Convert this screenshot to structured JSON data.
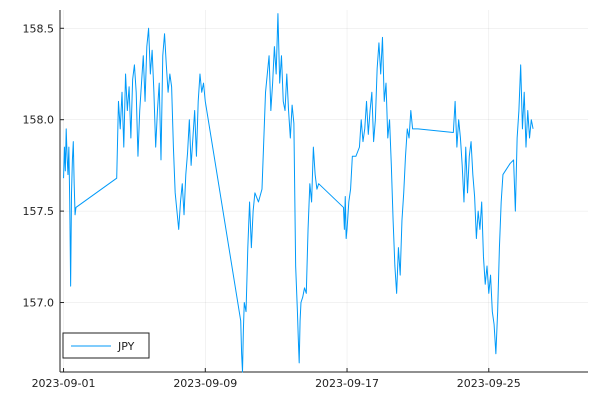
{
  "chart_data": {
    "type": "line",
    "title": "",
    "xlabel": "",
    "ylabel": "",
    "grid": true,
    "legend_position": "bottom-left",
    "x_ticks": [
      {
        "x": 0,
        "label": "2023-09-01"
      },
      {
        "x": 8,
        "label": "2023-09-09"
      },
      {
        "x": 16,
        "label": "2023-09-17"
      },
      {
        "x": 24,
        "label": "2023-09-25"
      }
    ],
    "x_tick_unit": "days since 2023-09-01",
    "xlim": [
      -0.2,
      29.6
    ],
    "y_ticks": [
      157.0,
      157.5,
      158.0,
      158.5
    ],
    "ylim": [
      156.62,
      158.6
    ],
    "series": [
      {
        "name": "JPY",
        "color": "#009af9",
        "points": [
          [
            0.0,
            157.68
          ],
          [
            0.05,
            157.85
          ],
          [
            0.1,
            157.72
          ],
          [
            0.15,
            157.95
          ],
          [
            0.2,
            157.8
          ],
          [
            0.25,
            157.7
          ],
          [
            0.3,
            157.85
          ],
          [
            0.35,
            157.55
          ],
          [
            0.4,
            157.09
          ],
          [
            0.45,
            157.6
          ],
          [
            0.5,
            157.78
          ],
          [
            0.55,
            157.88
          ],
          [
            0.6,
            157.65
          ],
          [
            0.65,
            157.48
          ],
          [
            0.7,
            157.52
          ],
          [
            3.0,
            157.68
          ],
          [
            3.1,
            158.1
          ],
          [
            3.2,
            157.95
          ],
          [
            3.3,
            158.15
          ],
          [
            3.4,
            157.85
          ],
          [
            3.5,
            158.25
          ],
          [
            3.6,
            158.05
          ],
          [
            3.7,
            158.18
          ],
          [
            3.8,
            157.9
          ],
          [
            3.9,
            158.22
          ],
          [
            4.0,
            158.3
          ],
          [
            4.1,
            158.15
          ],
          [
            4.2,
            157.8
          ],
          [
            4.3,
            158.05
          ],
          [
            4.4,
            158.2
          ],
          [
            4.5,
            158.35
          ],
          [
            4.6,
            158.1
          ],
          [
            4.7,
            158.4
          ],
          [
            4.8,
            158.5
          ],
          [
            4.9,
            158.25
          ],
          [
            5.0,
            158.38
          ],
          [
            5.1,
            158.15
          ],
          [
            5.2,
            157.85
          ],
          [
            5.3,
            158.05
          ],
          [
            5.4,
            158.2
          ],
          [
            5.5,
            157.78
          ],
          [
            5.6,
            158.35
          ],
          [
            5.7,
            158.47
          ],
          [
            5.8,
            158.3
          ],
          [
            5.9,
            158.15
          ],
          [
            6.0,
            158.25
          ],
          [
            6.1,
            158.18
          ],
          [
            6.2,
            157.85
          ],
          [
            6.3,
            157.6
          ],
          [
            6.4,
            157.5
          ],
          [
            6.5,
            157.4
          ],
          [
            6.6,
            157.55
          ],
          [
            6.7,
            157.65
          ],
          [
            6.8,
            157.48
          ],
          [
            6.9,
            157.7
          ],
          [
            7.0,
            157.82
          ],
          [
            7.1,
            158.0
          ],
          [
            7.2,
            157.75
          ],
          [
            7.3,
            157.9
          ],
          [
            7.4,
            158.05
          ],
          [
            7.5,
            157.8
          ],
          [
            7.6,
            158.1
          ],
          [
            7.7,
            158.25
          ],
          [
            7.8,
            158.15
          ],
          [
            7.9,
            158.2
          ],
          [
            8.0,
            158.1
          ],
          [
            10.0,
            156.9
          ],
          [
            10.05,
            156.72
          ],
          [
            10.1,
            156.62
          ],
          [
            10.15,
            156.85
          ],
          [
            10.2,
            157.0
          ],
          [
            10.3,
            156.95
          ],
          [
            10.4,
            157.3
          ],
          [
            10.5,
            157.55
          ],
          [
            10.6,
            157.3
          ],
          [
            10.7,
            157.5
          ],
          [
            10.8,
            157.6
          ],
          [
            11.0,
            157.55
          ],
          [
            11.2,
            157.62
          ],
          [
            11.4,
            158.15
          ],
          [
            11.6,
            158.35
          ],
          [
            11.7,
            158.05
          ],
          [
            11.8,
            158.2
          ],
          [
            11.9,
            158.4
          ],
          [
            12.0,
            158.25
          ],
          [
            12.1,
            158.58
          ],
          [
            12.2,
            158.2
          ],
          [
            12.3,
            158.35
          ],
          [
            12.4,
            158.1
          ],
          [
            12.5,
            158.05
          ],
          [
            12.6,
            158.25
          ],
          [
            12.7,
            158.05
          ],
          [
            12.8,
            157.9
          ],
          [
            12.9,
            158.08
          ],
          [
            13.0,
            157.98
          ],
          [
            13.1,
            157.2
          ],
          [
            13.2,
            156.95
          ],
          [
            13.25,
            156.8
          ],
          [
            13.3,
            156.67
          ],
          [
            13.35,
            156.9
          ],
          [
            13.4,
            157.0
          ],
          [
            13.5,
            157.03
          ],
          [
            13.6,
            157.08
          ],
          [
            13.7,
            157.05
          ],
          [
            13.8,
            157.4
          ],
          [
            13.9,
            157.65
          ],
          [
            14.0,
            157.55
          ],
          [
            14.1,
            157.85
          ],
          [
            14.2,
            157.7
          ],
          [
            14.3,
            157.62
          ],
          [
            14.4,
            157.65
          ],
          [
            15.8,
            157.52
          ],
          [
            15.85,
            157.4
          ],
          [
            15.9,
            157.58
          ],
          [
            15.95,
            157.35
          ],
          [
            16.0,
            157.4
          ],
          [
            16.1,
            157.55
          ],
          [
            16.2,
            157.62
          ],
          [
            16.3,
            157.8
          ],
          [
            16.5,
            157.8
          ],
          [
            16.7,
            157.85
          ],
          [
            16.8,
            158.0
          ],
          [
            16.9,
            157.88
          ],
          [
            17.0,
            157.95
          ],
          [
            17.1,
            158.1
          ],
          [
            17.2,
            157.92
          ],
          [
            17.3,
            158.05
          ],
          [
            17.4,
            158.15
          ],
          [
            17.5,
            157.88
          ],
          [
            17.6,
            158.0
          ],
          [
            17.7,
            158.28
          ],
          [
            17.8,
            158.42
          ],
          [
            17.9,
            158.25
          ],
          [
            18.0,
            158.45
          ],
          [
            18.1,
            158.1
          ],
          [
            18.2,
            158.2
          ],
          [
            18.3,
            157.9
          ],
          [
            18.4,
            158.0
          ],
          [
            18.5,
            157.75
          ],
          [
            18.6,
            157.45
          ],
          [
            18.7,
            157.2
          ],
          [
            18.8,
            157.05
          ],
          [
            18.9,
            157.3
          ],
          [
            19.0,
            157.15
          ],
          [
            19.1,
            157.45
          ],
          [
            19.2,
            157.6
          ],
          [
            19.3,
            157.8
          ],
          [
            19.4,
            157.95
          ],
          [
            19.5,
            157.9
          ],
          [
            19.6,
            158.05
          ],
          [
            19.7,
            157.95
          ],
          [
            20.0,
            157.95
          ],
          [
            22.0,
            157.93
          ],
          [
            22.1,
            158.1
          ],
          [
            22.2,
            157.85
          ],
          [
            22.3,
            158.0
          ],
          [
            22.4,
            157.9
          ],
          [
            22.5,
            157.75
          ],
          [
            22.6,
            157.55
          ],
          [
            22.7,
            157.85
          ],
          [
            22.8,
            157.6
          ],
          [
            22.9,
            157.8
          ],
          [
            23.0,
            157.88
          ],
          [
            23.1,
            157.7
          ],
          [
            23.2,
            157.58
          ],
          [
            23.3,
            157.35
          ],
          [
            23.4,
            157.5
          ],
          [
            23.5,
            157.4
          ],
          [
            23.6,
            157.55
          ],
          [
            23.7,
            157.25
          ],
          [
            23.8,
            157.1
          ],
          [
            23.9,
            157.2
          ],
          [
            24.0,
            157.05
          ],
          [
            24.1,
            157.15
          ],
          [
            24.2,
            156.95
          ],
          [
            24.3,
            156.88
          ],
          [
            24.4,
            156.72
          ],
          [
            24.5,
            156.95
          ],
          [
            24.6,
            157.3
          ],
          [
            24.7,
            157.55
          ],
          [
            24.8,
            157.7
          ],
          [
            25.0,
            157.73
          ],
          [
            25.2,
            157.76
          ],
          [
            25.4,
            157.78
          ],
          [
            25.5,
            157.5
          ],
          [
            25.6,
            157.9
          ],
          [
            25.7,
            158.05
          ],
          [
            25.8,
            158.3
          ],
          [
            25.9,
            157.95
          ],
          [
            26.0,
            158.15
          ],
          [
            26.1,
            157.85
          ],
          [
            26.2,
            158.05
          ],
          [
            26.3,
            157.9
          ],
          [
            26.4,
            158.0
          ],
          [
            26.5,
            157.95
          ]
        ]
      }
    ]
  }
}
